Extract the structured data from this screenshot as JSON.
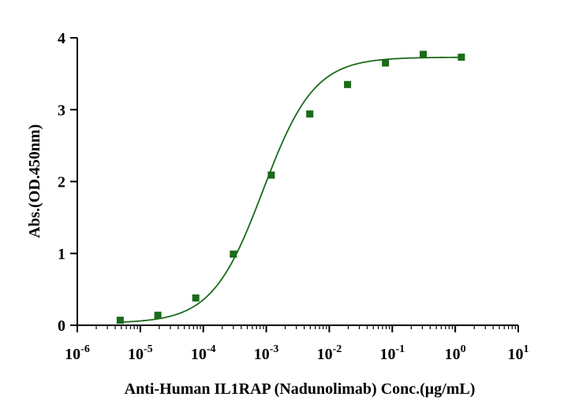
{
  "chart_data": {
    "type": "scatter",
    "title": "",
    "xlabel": "Anti-Human IL1RAP (Nadunolimab) Conc.(μg/mL)",
    "ylabel": "Abs.(OD.450nm)",
    "x_scale": "log",
    "xlim": [
      1e-06,
      10
    ],
    "ylim": [
      0,
      4
    ],
    "x_tick_labels": [
      {
        "base": "10",
        "exp": "-6"
      },
      {
        "base": "10",
        "exp": "-5"
      },
      {
        "base": "10",
        "exp": "-4"
      },
      {
        "base": "10",
        "exp": "-3"
      },
      {
        "base": "10",
        "exp": "-2"
      },
      {
        "base": "10",
        "exp": "-1"
      },
      {
        "base": "10",
        "exp": "0"
      },
      {
        "base": "10",
        "exp": "1"
      }
    ],
    "y_ticks": [
      "0",
      "1",
      "2",
      "3",
      "4"
    ],
    "grid": false,
    "legend": "none",
    "series": [
      {
        "x": [
          4.8e-06,
          1.9e-05,
          7.6e-05,
          0.0003,
          0.0012,
          0.0049,
          0.0195,
          0.078,
          0.31,
          1.25
        ],
        "y": [
          0.07,
          0.14,
          0.38,
          0.99,
          2.09,
          2.94,
          3.35,
          3.65,
          3.77,
          3.73
        ],
        "marker": "square",
        "color": "#1a6b1a",
        "fit": {
          "model": "4PL",
          "bottom": 0.03,
          "top": 3.73,
          "ec50": 0.00089,
          "hill": 1.07
        }
      }
    ]
  }
}
